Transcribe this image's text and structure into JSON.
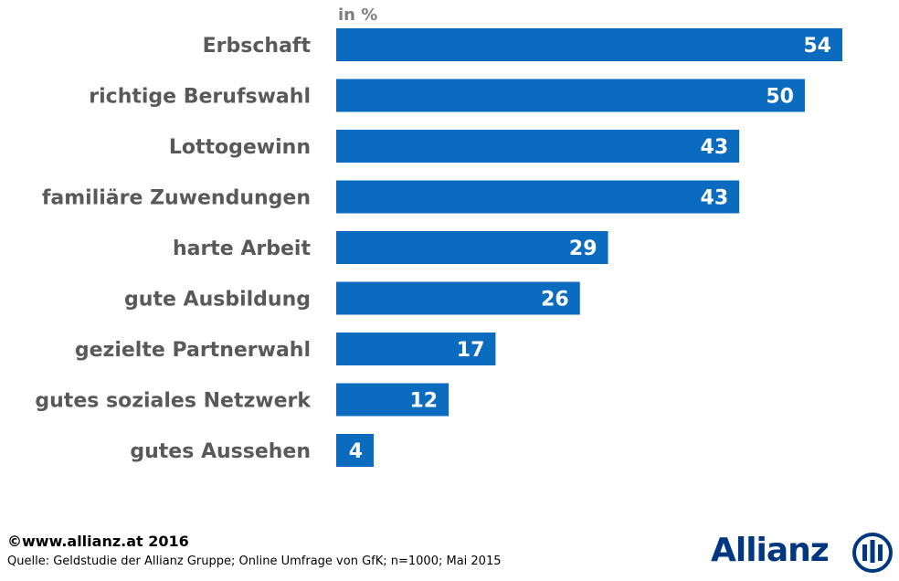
{
  "chart_data": {
    "type": "bar",
    "orientation": "horizontal",
    "unit_label": "in %",
    "categories": [
      "Erbschaft",
      "richtige Berufswahl",
      "Lottogewinn",
      "familiäre Zuwendungen",
      "harte Arbeit",
      "gute Ausbildung",
      "gezielte Partnerwahl",
      "gutes soziales Netzwerk",
      "gutes Aussehen"
    ],
    "values": [
      54,
      50,
      43,
      43,
      29,
      26,
      17,
      12,
      4
    ],
    "xlim": [
      0,
      54
    ],
    "grid": false,
    "bar_color": "#0a6bbf",
    "data_labels": true
  },
  "footer": {
    "copyright": "©www.allianz.at 2016",
    "source": "Quelle: Geldstudie der Allianz Gruppe; Online Umfrage von GfK; n=1000; Mai 2015"
  },
  "brand": {
    "name": "Allianz",
    "icon": "allianz-eagle-logo-icon",
    "color": "#003781"
  }
}
